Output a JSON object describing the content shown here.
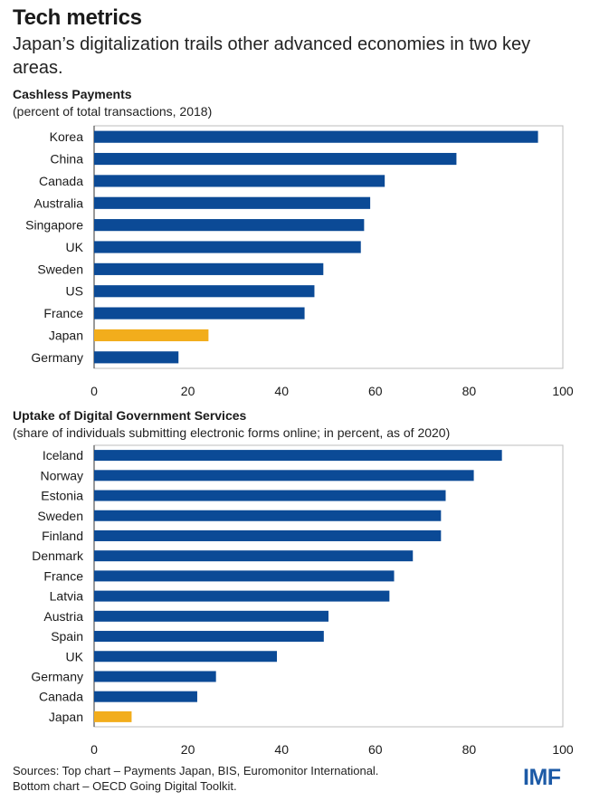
{
  "header": {
    "title": "Tech metrics",
    "subtitle": "Japan’s digitalization trails other advanced economies in two key areas."
  },
  "footer": {
    "sources": "Sources: Top chart – Payments Japan, BIS, Euromonitor International.",
    "sources_line2": "Bottom chart – OECD Going Digital Toolkit.",
    "logo": "IMF"
  },
  "colors": {
    "bar": "#0b4a96",
    "highlight": "#f2ad1c",
    "axis": "#555555"
  },
  "chart_data": [
    {
      "type": "bar",
      "orientation": "horizontal",
      "title": "Cashless Payments",
      "subtitle": "(percent of total transactions, 2018)",
      "categories": [
        "Korea",
        "China",
        "Canada",
        "Australia",
        "Singapore",
        "UK",
        "Sweden",
        "US",
        "France",
        "Japan",
        "Germany"
      ],
      "values": [
        94.7,
        77.3,
        62,
        58.9,
        57.6,
        56.9,
        48.9,
        47,
        44.9,
        24.4,
        18
      ],
      "highlight": [
        "Japan"
      ],
      "xlim": [
        0,
        100
      ],
      "xticks": [
        0,
        20,
        40,
        60,
        80,
        100
      ],
      "grid": false,
      "legend": "none"
    },
    {
      "type": "bar",
      "orientation": "horizontal",
      "title": "Uptake of Digital Government Services",
      "subtitle": "(share of individuals submitting electronic forms online; in percent, as of 2020)",
      "categories": [
        "Iceland",
        "Norway",
        "Estonia",
        "Sweden",
        "Finland",
        "Denmark",
        "France",
        "Latvia",
        "Austria",
        "Spain",
        "UK",
        "Germany",
        "Canada",
        "Japan"
      ],
      "values": [
        87,
        81,
        75,
        74,
        74,
        68,
        64,
        63,
        50,
        49,
        39,
        26,
        22,
        8
      ],
      "highlight": [
        "Japan"
      ],
      "xlim": [
        0,
        100
      ],
      "xticks": [
        0,
        20,
        40,
        60,
        80,
        100
      ],
      "grid": false,
      "legend": "none"
    }
  ]
}
